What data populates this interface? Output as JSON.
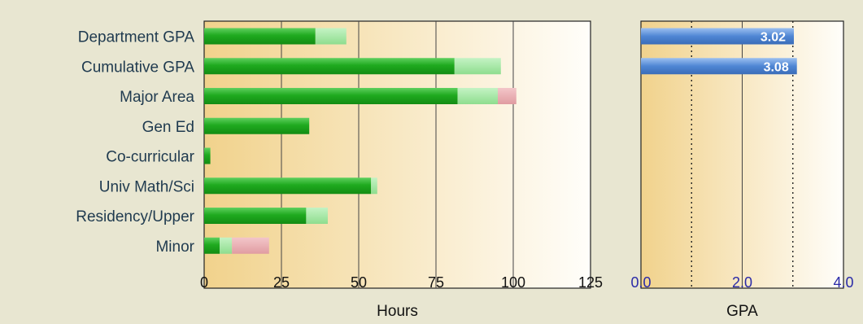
{
  "chart_data": [
    {
      "type": "bar",
      "orientation": "horizontal",
      "stacked": true,
      "categories": [
        "Department GPA",
        "Cumulative GPA",
        "Major Area",
        "Gen Ed",
        "Co-curricular",
        "Univ Math/Sci",
        "Residency/Upper",
        "Minor"
      ],
      "series": [
        {
          "values": [
            36,
            81,
            82,
            34,
            2,
            54,
            33,
            5
          ]
        },
        {
          "values": [
            10,
            15,
            13,
            0,
            0,
            2,
            7,
            4
          ]
        },
        {
          "values": [
            0,
            0,
            6,
            0,
            0,
            0,
            0,
            12
          ]
        }
      ],
      "xlabel": "Hours",
      "xlim": [
        0,
        125
      ],
      "xticks": [
        "0",
        "25",
        "50",
        "75",
        "100",
        "125"
      ],
      "grid": true,
      "colors": {
        "series": [
          "#1e9e1e",
          "#9be39b",
          "#e8a9ad"
        ]
      }
    },
    {
      "type": "bar",
      "orientation": "horizontal",
      "categories": [
        "Department GPA",
        "Cumulative GPA"
      ],
      "values": [
        3.02,
        3.08
      ],
      "labels": [
        "3.02",
        "3.08"
      ],
      "xlabel": "GPA",
      "xlim": [
        0,
        4.0
      ],
      "xticks": [
        "0.0",
        "2.0",
        "4.0"
      ],
      "reference_lines": [
        1.0,
        3.0
      ],
      "grid": true,
      "colors": {
        "bar": "#4f86d4"
      }
    }
  ]
}
